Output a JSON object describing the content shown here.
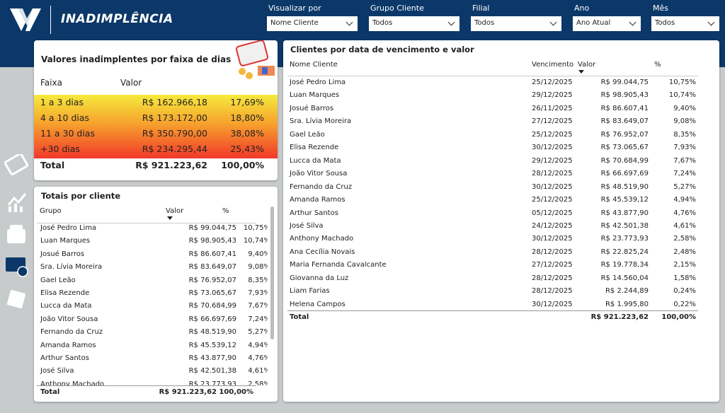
{
  "header": {
    "title": "INADIMPLÊNCIA"
  },
  "filters": [
    {
      "label": "Visualizar por",
      "value": "Nome Cliente"
    },
    {
      "label": "Grupo Cliente",
      "value": "Todos"
    },
    {
      "label": "Filial",
      "value": "Todos"
    },
    {
      "label": "Ano",
      "value": "Ano Atual"
    },
    {
      "label": "Mês",
      "value": "Todos"
    }
  ],
  "faixa": {
    "title": "Valores inadimplentes por faixa de dias",
    "columns": [
      "Faixa",
      "Valor"
    ],
    "rows": [
      [
        "1 a 3 dias",
        "R$ 162.966,18",
        "17,69%"
      ],
      [
        "4 a 10 dias",
        "R$ 173.172,00",
        "18,80%"
      ],
      [
        "11 a 30 dias",
        "R$ 350.790,00",
        "38,08%"
      ],
      [
        "+30 dias",
        "R$ 234.295,44",
        "25,43%"
      ]
    ],
    "total": [
      "Total",
      "R$ 921.223,62",
      "100,00%"
    ]
  },
  "totais": {
    "title": "Totais por cliente",
    "columns": [
      "Grupo",
      "Valor",
      "%"
    ],
    "rows": [
      [
        "José Pedro Lima",
        "R$ 99.044,75",
        "10,75%"
      ],
      [
        "Luan Marques",
        "R$ 98.905,43",
        "10,74%"
      ],
      [
        "Josué Barros",
        "R$ 86.607,41",
        "9,40%"
      ],
      [
        "Sra. Lívia Moreira",
        "R$ 83.649,07",
        "9,08%"
      ],
      [
        "Gael Leão",
        "R$ 76.952,07",
        "8,35%"
      ],
      [
        "Elisa Rezende",
        "R$ 73.065,67",
        "7,93%"
      ],
      [
        "Lucca da Mata",
        "R$ 70.684,99",
        "7,67%"
      ],
      [
        "João Vitor Sousa",
        "R$ 66.697,69",
        "7,24%"
      ],
      [
        "Fernando da Cruz",
        "R$ 48.519,90",
        "5,27%"
      ],
      [
        "Amanda Ramos",
        "R$ 45.539,12",
        "4,94%"
      ],
      [
        "Arthur Santos",
        "R$ 43.877,90",
        "4,76%"
      ],
      [
        "José Silva",
        "R$ 42.501,38",
        "4,61%"
      ],
      [
        "Anthony Machado",
        "R$ 23.773,93",
        "2,58%"
      ]
    ],
    "total": [
      "Total",
      "R$ 921.223,62",
      "100,00%"
    ]
  },
  "clientes": {
    "title": "Clientes por data de vencimento e valor",
    "columns": [
      "Nome Cliente",
      "Vencimento",
      "Valor",
      "%"
    ],
    "rows": [
      [
        "José Pedro Lima",
        "25/12/2025",
        "R$ 99.044,75",
        "10,75%"
      ],
      [
        "Luan Marques",
        "29/12/2025",
        "R$ 98.905,43",
        "10,74%"
      ],
      [
        "Josué Barros",
        "26/11/2025",
        "R$ 86.607,41",
        "9,40%"
      ],
      [
        "Sra. Lívia Moreira",
        "27/12/2025",
        "R$ 83.649,07",
        "9,08%"
      ],
      [
        "Gael Leão",
        "25/12/2025",
        "R$ 76.952,07",
        "8,35%"
      ],
      [
        "Elisa Rezende",
        "30/12/2025",
        "R$ 73.065,67",
        "7,93%"
      ],
      [
        "Lucca da Mata",
        "29/12/2025",
        "R$ 70.684,99",
        "7,67%"
      ],
      [
        "João Vitor Sousa",
        "28/12/2025",
        "R$ 66.697,69",
        "7,24%"
      ],
      [
        "Fernando da Cruz",
        "30/12/2025",
        "R$ 48.519,90",
        "5,27%"
      ],
      [
        "Amanda Ramos",
        "25/12/2025",
        "R$ 45.539,12",
        "4,94%"
      ],
      [
        "Arthur Santos",
        "05/12/2025",
        "R$ 43.877,90",
        "4,76%"
      ],
      [
        "José Silva",
        "24/12/2025",
        "R$ 42.501,38",
        "4,61%"
      ],
      [
        "Anthony Machado",
        "30/12/2025",
        "R$ 23.773,93",
        "2,58%"
      ],
      [
        "Ana Cecília Novais",
        "28/12/2025",
        "R$ 22.825,24",
        "2,48%"
      ],
      [
        "Maria Fernanda Cavalcante",
        "27/12/2025",
        "R$ 19.778,34",
        "2,15%"
      ],
      [
        "Giovanna da Luz",
        "28/12/2025",
        "R$ 14.560,04",
        "1,58%"
      ],
      [
        "Liam Farias",
        "28/12/2025",
        "R$ 2.244,89",
        "0,24%"
      ],
      [
        "Helena Campos",
        "30/12/2025",
        "R$ 1.995,80",
        "0,22%"
      ]
    ],
    "total": [
      "Total",
      "R$ 921.223,62",
      "100,00%"
    ]
  }
}
